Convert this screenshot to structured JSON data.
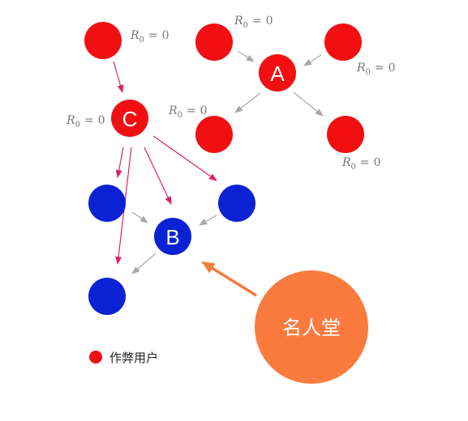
{
  "colors": {
    "cheater": "#f20f12",
    "normal": "#0b22d4",
    "hall": "#fb7b3f",
    "edge_cheat": "#e0206a",
    "edge_normal": "#a8a8a8",
    "edge_hall": "#f57c3c"
  },
  "nodes": {
    "A": "A",
    "B": "B",
    "C": "C"
  },
  "r0_labels": {
    "symbol": "R",
    "subscript": "0",
    "equals": "=",
    "value": "0"
  },
  "hall_of_fame": "名人堂",
  "legend": {
    "label": "作弊用户"
  }
}
